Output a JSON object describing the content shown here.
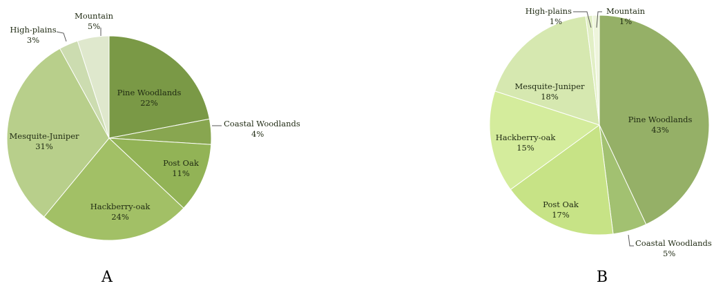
{
  "chart_data": [
    {
      "type": "pie",
      "panel_label": "A",
      "slices": [
        {
          "label": "Pine Woodlands",
          "value": 22,
          "value_text": "22%",
          "color": "#7a9946"
        },
        {
          "label": "Coastal Woodlands",
          "value": 4,
          "value_text": "4%",
          "color": "#88a650"
        },
        {
          "label": "Post Oak",
          "value": 11,
          "value_text": "11%",
          "color": "#92b356"
        },
        {
          "label": "Hackberry-oak",
          "value": 24,
          "value_text": "24%",
          "color": "#a2c066"
        },
        {
          "label": "Mesquite-Juniper",
          "value": 31,
          "value_text": "31%",
          "color": "#b8cf8b"
        },
        {
          "label": "High-plains",
          "value": 3,
          "value_text": "3%",
          "color": "#ccdcb0"
        },
        {
          "label": "Mountain",
          "value": 5,
          "value_text": "5%",
          "color": "#dfe8cd"
        }
      ]
    },
    {
      "type": "pie",
      "panel_label": "B",
      "slices": [
        {
          "label": "Pine Woodlands",
          "value": 43,
          "value_text": "43%",
          "color": "#95b067"
        },
        {
          "label": "Coastal Woodlands",
          "value": 5,
          "value_text": "5%",
          "color": "#a2c171"
        },
        {
          "label": "Post Oak",
          "value": 17,
          "value_text": "17%",
          "color": "#c7e386"
        },
        {
          "label": "Hackberry-oak",
          "value": 15,
          "value_text": "15%",
          "color": "#d4ec9c"
        },
        {
          "label": "Mesquite-Juniper",
          "value": 18,
          "value_text": "18%",
          "color": "#d6e8b0"
        },
        {
          "label": "High-plains",
          "value": 1,
          "value_text": "1%",
          "color": "#e2efc6"
        },
        {
          "label": "Mountain",
          "value": 1,
          "value_text": "1%",
          "color": "#eef5dc"
        }
      ]
    }
  ]
}
